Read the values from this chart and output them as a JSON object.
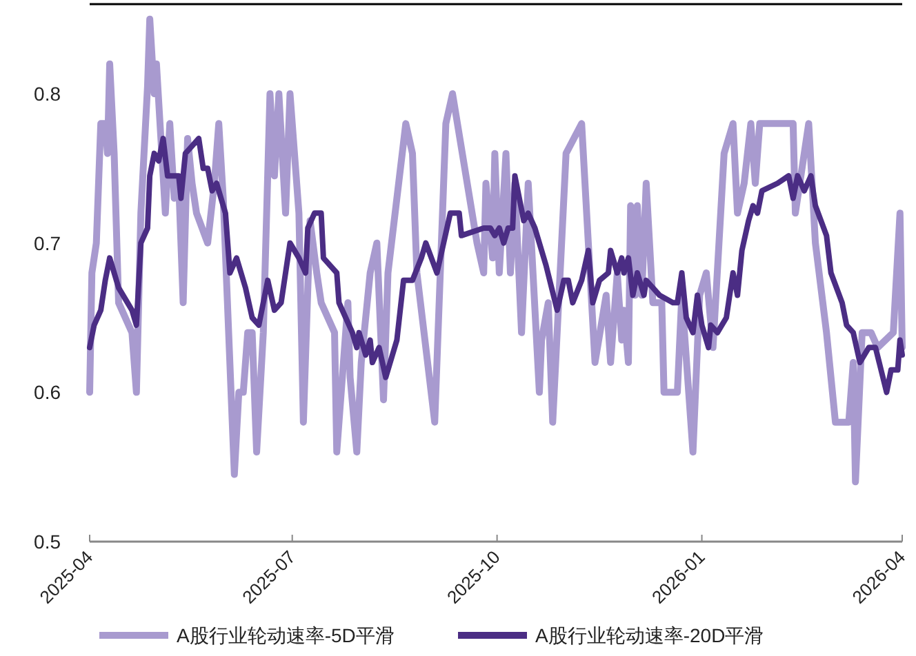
{
  "chart_data": {
    "type": "line",
    "xlim": [
      "2025-04-01",
      "2026-04-01"
    ],
    "xticks": [
      "2025-04",
      "2025-07",
      "2025-10",
      "2026-01",
      "2026-04"
    ],
    "ylim": [
      0.5,
      0.86
    ],
    "yticks": [
      0.5,
      0.6,
      0.7,
      0.8
    ],
    "grid": false,
    "legend": "bottom",
    "series": [
      {
        "name": "A股行业轮动速率-5D平滑",
        "color": "#a89acf",
        "x": [
          "2025-04-01",
          "2025-04-02",
          "2025-04-04",
          "2025-04-06",
          "2025-04-08",
          "2025-04-09",
          "2025-04-10",
          "2025-04-12",
          "2025-04-14",
          "2025-04-20",
          "2025-04-22",
          "2025-04-24",
          "2025-04-27",
          "2025-04-28",
          "2025-04-30",
          "2025-05-01",
          "2025-05-03",
          "2025-05-05",
          "2025-05-07",
          "2025-05-09",
          "2025-05-11",
          "2025-05-13",
          "2025-05-15",
          "2025-05-17",
          "2025-05-19",
          "2025-05-24",
          "2025-05-27",
          "2025-05-29",
          "2025-05-31",
          "2025-06-05",
          "2025-06-07",
          "2025-06-09",
          "2025-06-11",
          "2025-06-13",
          "2025-06-15",
          "2025-06-18",
          "2025-06-21",
          "2025-06-23",
          "2025-06-25",
          "2025-06-28",
          "2025-06-30",
          "2025-07-04",
          "2025-07-06",
          "2025-07-09",
          "2025-07-12",
          "2025-07-14",
          "2025-07-20",
          "2025-07-21",
          "2025-07-24",
          "2025-07-26",
          "2025-07-27",
          "2025-07-30",
          "2025-08-01",
          "2025-08-05",
          "2025-08-08",
          "2025-08-11",
          "2025-08-13",
          "2025-08-21",
          "2025-08-24",
          "2025-08-26",
          "2025-09-03",
          "2025-09-08",
          "2025-09-11",
          "2025-09-22",
          "2025-09-25",
          "2025-09-26",
          "2025-09-29",
          "2025-09-30",
          "2025-10-02",
          "2025-10-05",
          "2025-10-07",
          "2025-10-09",
          "2025-10-12",
          "2025-10-15",
          "2025-10-20",
          "2025-10-21",
          "2025-10-24",
          "2025-10-26",
          "2025-11-01",
          "2025-11-08",
          "2025-11-11",
          "2025-11-14",
          "2025-11-19",
          "2025-11-21",
          "2025-11-24",
          "2025-11-26",
          "2025-11-27",
          "2025-11-29",
          "2025-11-30",
          "2025-12-02",
          "2025-12-03",
          "2025-12-05",
          "2025-12-07",
          "2025-12-10",
          "2025-12-14",
          "2025-12-15",
          "2025-12-21",
          "2025-12-23",
          "2025-12-28",
          "2025-12-31",
          "2026-01-03",
          "2026-01-06",
          "2026-01-11",
          "2026-01-15",
          "2026-01-17",
          "2026-01-20",
          "2026-01-23",
          "2026-01-25",
          "2026-01-27",
          "2026-02-02",
          "2026-02-11",
          "2026-02-12",
          "2026-02-14",
          "2026-02-18",
          "2026-02-21",
          "2026-02-26",
          "2026-03-02",
          "2026-03-08",
          "2026-03-10",
          "2026-03-11",
          "2026-03-14",
          "2026-03-18",
          "2026-03-21",
          "2026-03-28",
          "2026-03-31",
          "2026-04-01"
        ],
        "values": [
          0.6,
          0.68,
          0.7,
          0.78,
          0.78,
          0.76,
          0.82,
          0.76,
          0.66,
          0.64,
          0.6,
          0.72,
          0.805,
          0.85,
          0.8,
          0.82,
          0.77,
          0.72,
          0.78,
          0.73,
          0.74,
          0.66,
          0.77,
          0.74,
          0.72,
          0.7,
          0.74,
          0.78,
          0.73,
          0.545,
          0.6,
          0.6,
          0.64,
          0.64,
          0.56,
          0.64,
          0.8,
          0.745,
          0.8,
          0.72,
          0.8,
          0.72,
          0.58,
          0.715,
          0.68,
          0.66,
          0.64,
          0.56,
          0.62,
          0.66,
          0.61,
          0.56,
          0.62,
          0.68,
          0.7,
          0.595,
          0.68,
          0.78,
          0.76,
          0.68,
          0.58,
          0.78,
          0.8,
          0.7,
          0.68,
          0.74,
          0.69,
          0.76,
          0.68,
          0.76,
          0.68,
          0.74,
          0.64,
          0.74,
          0.6,
          0.635,
          0.66,
          0.58,
          0.76,
          0.78,
          0.7,
          0.62,
          0.665,
          0.62,
          0.68,
          0.635,
          0.655,
          0.62,
          0.725,
          0.665,
          0.725,
          0.665,
          0.74,
          0.66,
          0.66,
          0.6,
          0.6,
          0.665,
          0.56,
          0.665,
          0.68,
          0.63,
          0.76,
          0.78,
          0.72,
          0.74,
          0.78,
          0.74,
          0.78,
          0.78,
          0.78,
          0.72,
          0.74,
          0.78,
          0.7,
          0.64,
          0.58,
          0.58,
          0.62,
          0.54,
          0.64,
          0.64,
          0.63,
          0.64,
          0.72,
          0.63
        ]
      },
      {
        "name": "A股行业轮动速率-20D平滑",
        "color": "#4b2d84",
        "x": [
          "2025-04-01",
          "2025-04-03",
          "2025-04-06",
          "2025-04-08",
          "2025-04-10",
          "2025-04-11",
          "2025-04-14",
          "2025-04-20",
          "2025-04-22",
          "2025-04-24",
          "2025-04-27",
          "2025-04-28",
          "2025-04-30",
          "2025-05-02",
          "2025-05-04",
          "2025-05-06",
          "2025-05-11",
          "2025-05-12",
          "2025-05-14",
          "2025-05-17",
          "2025-05-20",
          "2025-05-22",
          "2025-05-24",
          "2025-05-26",
          "2025-05-28",
          "2025-06-01",
          "2025-06-03",
          "2025-06-06",
          "2025-06-10",
          "2025-06-13",
          "2025-06-16",
          "2025-06-20",
          "2025-06-23",
          "2025-06-26",
          "2025-06-30",
          "2025-07-04",
          "2025-07-07",
          "2025-07-08",
          "2025-07-11",
          "2025-07-14",
          "2025-07-15",
          "2025-07-21",
          "2025-07-22",
          "2025-07-25",
          "2025-07-28",
          "2025-07-30",
          "2025-07-31",
          "2025-08-03",
          "2025-08-05",
          "2025-08-06",
          "2025-08-09",
          "2025-08-12",
          "2025-08-17",
          "2025-08-20",
          "2025-08-24",
          "2025-08-28",
          "2025-08-30",
          "2025-09-04",
          "2025-09-07",
          "2025-09-10",
          "2025-09-14",
          "2025-09-15",
          "2025-09-25",
          "2025-09-28",
          "2025-09-30",
          "2025-10-02",
          "2025-10-04",
          "2025-10-06",
          "2025-10-08",
          "2025-10-09",
          "2025-10-13",
          "2025-10-15",
          "2025-10-18",
          "2025-10-21",
          "2025-10-23",
          "2025-10-28",
          "2025-10-31",
          "2025-11-02",
          "2025-11-04",
          "2025-11-08",
          "2025-11-11",
          "2025-11-13",
          "2025-11-16",
          "2025-11-20",
          "2025-11-21",
          "2025-11-24",
          "2025-11-26",
          "2025-11-27",
          "2025-11-29",
          "2025-12-01",
          "2025-12-03",
          "2025-12-06",
          "2025-12-07",
          "2025-12-10",
          "2025-12-13",
          "2025-12-19",
          "2025-12-21",
          "2025-12-23",
          "2025-12-25",
          "2025-12-28",
          "2025-12-30",
          "2026-01-01",
          "2026-01-04",
          "2026-01-05",
          "2026-01-08",
          "2026-01-12",
          "2026-01-15",
          "2026-01-17",
          "2026-01-19",
          "2026-01-22",
          "2026-01-24",
          "2026-01-26",
          "2026-01-28",
          "2026-02-04",
          "2026-02-09",
          "2026-02-11",
          "2026-02-13",
          "2026-02-16",
          "2026-02-19",
          "2026-02-21",
          "2026-02-26",
          "2026-02-28",
          "2026-03-05",
          "2026-03-07",
          "2026-03-10",
          "2026-03-13",
          "2026-03-17",
          "2026-03-20",
          "2026-03-25",
          "2026-03-27",
          "2026-03-30",
          "2026-03-31",
          "2026-04-01"
        ],
        "values": [
          0.63,
          0.645,
          0.655,
          0.675,
          0.69,
          0.685,
          0.67,
          0.655,
          0.645,
          0.7,
          0.71,
          0.745,
          0.76,
          0.755,
          0.77,
          0.745,
          0.745,
          0.73,
          0.76,
          0.765,
          0.77,
          0.75,
          0.75,
          0.735,
          0.74,
          0.72,
          0.68,
          0.69,
          0.67,
          0.65,
          0.645,
          0.675,
          0.655,
          0.66,
          0.7,
          0.69,
          0.68,
          0.71,
          0.72,
          0.72,
          0.69,
          0.68,
          0.66,
          0.65,
          0.64,
          0.63,
          0.64,
          0.625,
          0.635,
          0.62,
          0.63,
          0.61,
          0.635,
          0.675,
          0.675,
          0.69,
          0.7,
          0.68,
          0.7,
          0.72,
          0.72,
          0.705,
          0.71,
          0.71,
          0.705,
          0.71,
          0.7,
          0.71,
          0.71,
          0.745,
          0.715,
          0.72,
          0.71,
          0.695,
          0.685,
          0.655,
          0.675,
          0.675,
          0.66,
          0.675,
          0.695,
          0.66,
          0.675,
          0.68,
          0.695,
          0.68,
          0.69,
          0.68,
          0.69,
          0.665,
          0.68,
          0.665,
          0.675,
          0.67,
          0.665,
          0.66,
          0.66,
          0.68,
          0.65,
          0.64,
          0.665,
          0.645,
          0.63,
          0.645,
          0.64,
          0.65,
          0.68,
          0.665,
          0.695,
          0.715,
          0.725,
          0.72,
          0.735,
          0.74,
          0.745,
          0.73,
          0.745,
          0.735,
          0.745,
          0.725,
          0.705,
          0.68,
          0.66,
          0.645,
          0.64,
          0.62,
          0.63,
          0.63,
          0.6,
          0.615,
          0.615,
          0.635,
          0.625
        ]
      }
    ]
  }
}
